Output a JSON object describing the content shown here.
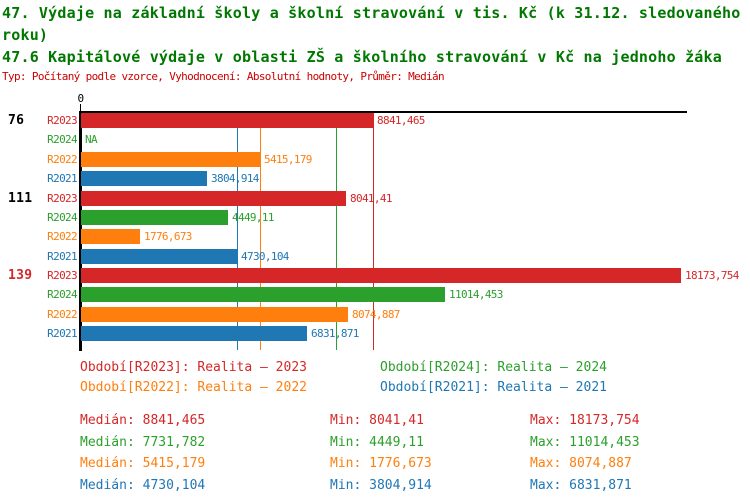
{
  "header": {
    "title_line1": "47. Výdaje na základní školy a školní stravování v tis. Kč (k 31.12. sledovaného roku)",
    "title_line2": "47.6 Kapitálové výdaje v oblasti ZŠ a školního stravování v Kč na jednoho žáka",
    "subtitle": "Typ: Počítaný podle vzorce, Vyhodnocení: Absolutní hodnoty, Průměr: Medián"
  },
  "colors": {
    "red": "#d62728",
    "green": "#2ca02c",
    "orange": "#ff7f0e",
    "blue": "#1f77b4",
    "black": "#000000",
    "title": "#007700",
    "subtitle": "#cc0000",
    "axis": "#000000"
  },
  "chart_data": {
    "type": "bar",
    "orientation": "horizontal",
    "value_axis": {
      "tick_labels": [
        "0"
      ],
      "min": 0,
      "max": 18173.754
    },
    "series_order": [
      "R2023",
      "R2024",
      "R2022",
      "R2021"
    ],
    "groups": [
      {
        "label": "76",
        "label_color": "black",
        "bars": [
          {
            "series": "R2023",
            "color": "red",
            "value": 8841.465,
            "label": "8841,465"
          },
          {
            "series": "R2024",
            "color": "green",
            "value": null,
            "label": "NA"
          },
          {
            "series": "R2022",
            "color": "orange",
            "value": 5415.179,
            "label": "5415,179"
          },
          {
            "series": "R2021",
            "color": "blue",
            "value": 3804.914,
            "label": "3804,914"
          }
        ]
      },
      {
        "label": "111",
        "label_color": "black",
        "bars": [
          {
            "series": "R2023",
            "color": "red",
            "value": 8041.41,
            "label": "8041,41"
          },
          {
            "series": "R2024",
            "color": "green",
            "value": 4449.11,
            "label": "4449,11"
          },
          {
            "series": "R2022",
            "color": "orange",
            "value": 1776.673,
            "label": "1776,673"
          },
          {
            "series": "R2021",
            "color": "blue",
            "value": 4730.104,
            "label": "4730,104"
          }
        ]
      },
      {
        "label": "139",
        "label_color": "red",
        "bars": [
          {
            "series": "R2023",
            "color": "red",
            "value": 18173.754,
            "label": "18173,754"
          },
          {
            "series": "R2024",
            "color": "green",
            "value": 11014.453,
            "label": "11014,453"
          },
          {
            "series": "R2022",
            "color": "orange",
            "value": 8074.887,
            "label": "8074,887"
          },
          {
            "series": "R2021",
            "color": "blue",
            "value": 6831.871,
            "label": "6831,871"
          }
        ]
      }
    ],
    "median_lines": [
      {
        "series": "R2021",
        "color": "blue",
        "value": 4730.104
      },
      {
        "series": "R2022",
        "color": "orange",
        "value": 5415.179
      },
      {
        "series": "R2024",
        "color": "green",
        "value": 7731.782
      },
      {
        "series": "R2023",
        "color": "red",
        "value": 8841.465
      }
    ],
    "legend": [
      {
        "series": "R2023",
        "color": "red",
        "label": "Období[R2023]: Realita – 2023"
      },
      {
        "series": "R2024",
        "color": "green",
        "label": "Období[R2024]: Realita – 2024"
      },
      {
        "series": "R2022",
        "color": "orange",
        "label": "Období[R2022]: Realita – 2022"
      },
      {
        "series": "R2021",
        "color": "blue",
        "label": "Období[R2021]: Realita – 2021"
      }
    ],
    "stats_labels": {
      "median": "Medián:",
      "min": "Min:",
      "max": "Max:"
    },
    "stats": [
      {
        "series": "R2023",
        "color": "red",
        "median": "8841,465",
        "min": "8041,41",
        "max": "18173,754"
      },
      {
        "series": "R2024",
        "color": "green",
        "median": "7731,782",
        "min": "4449,11",
        "max": "11014,453"
      },
      {
        "series": "R2022",
        "color": "orange",
        "median": "5415,179",
        "min": "1776,673",
        "max": "8074,887"
      },
      {
        "series": "R2021",
        "color": "blue",
        "median": "4730,104",
        "min": "3804,914",
        "max": "6831,871"
      }
    ]
  }
}
